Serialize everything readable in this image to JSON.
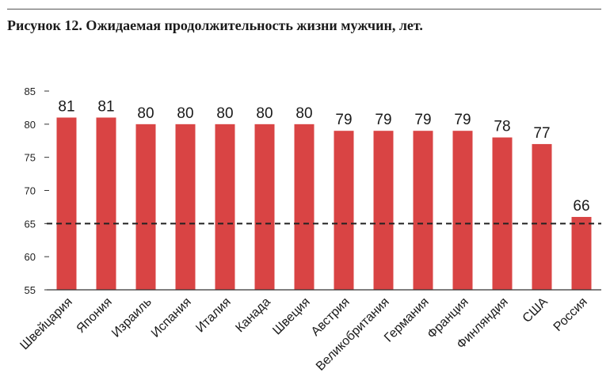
{
  "title": "Рисунок 12. Ожидаемая продолжительность жизни мужчин, лет.",
  "chart_data": {
    "type": "bar",
    "title": "Рисунок 12. Ожидаемая продолжительность жизни мужчин, лет.",
    "xlabel": "",
    "ylabel": "",
    "categories": [
      "Швейцария",
      "Япония",
      "Израиль",
      "Испания",
      "Италия",
      "Канада",
      "Швеция",
      "Австрия",
      "Великобритания",
      "Германия",
      "Франция",
      "Финляндия",
      "США",
      "Россия"
    ],
    "values": [
      81,
      81,
      80,
      80,
      80,
      80,
      80,
      79,
      79,
      79,
      79,
      78,
      77,
      66
    ],
    "ylim": [
      55,
      85
    ],
    "yticks": [
      55,
      60,
      65,
      70,
      75,
      80,
      85
    ],
    "reference_line": 65,
    "grid": false,
    "legend": "none",
    "bar_color": "#d94444"
  }
}
